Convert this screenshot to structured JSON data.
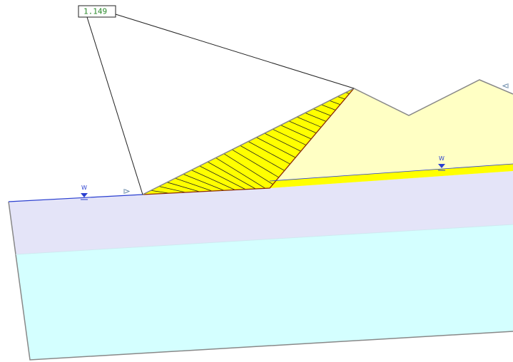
{
  "factor_of_safety": "1.149",
  "water_labels": [
    "W",
    "W"
  ]
}
